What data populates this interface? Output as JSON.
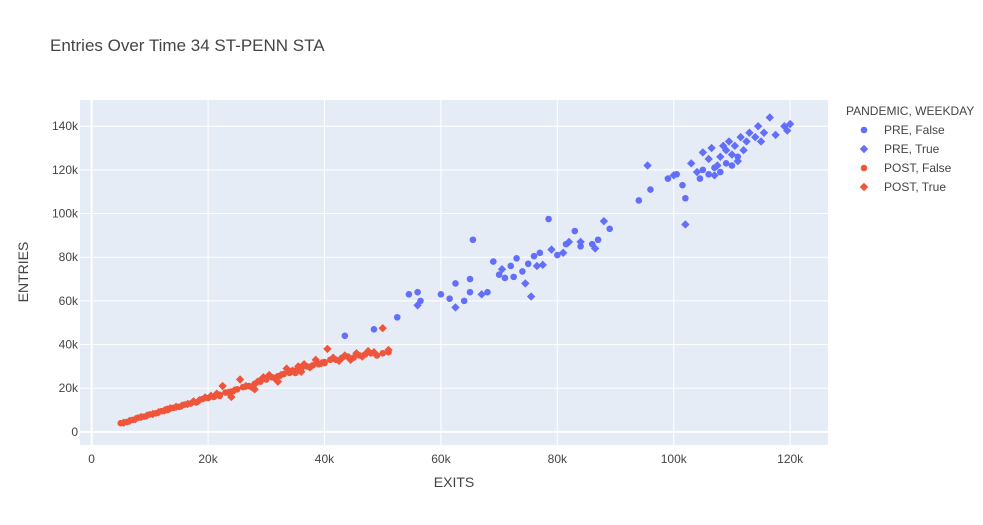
{
  "chart_data": {
    "type": "scatter",
    "title": "Entries Over Time 34 ST-PENN STA",
    "xlabel": "EXITS",
    "ylabel": "ENTRIES",
    "xlim": [
      -2000,
      126500
    ],
    "ylim": [
      -6000,
      152000
    ],
    "x_ticks": [
      0,
      20000,
      40000,
      60000,
      80000,
      100000,
      120000
    ],
    "x_tick_labels": [
      "0",
      "20k",
      "40k",
      "60k",
      "80k",
      "100k",
      "120k"
    ],
    "y_ticks": [
      0,
      20000,
      40000,
      60000,
      80000,
      100000,
      120000,
      140000
    ],
    "y_tick_labels": [
      "0",
      "20k",
      "40k",
      "60k",
      "80k",
      "100k",
      "120k",
      "140k"
    ],
    "grid": true,
    "legend_title": "PANDEMIC, WEEKDAY",
    "legend_position": "right",
    "colors": {
      "PRE": "#636efa",
      "POST": "#ef553b",
      "plot_bg": "#e5ecf6",
      "grid": "#ffffff"
    },
    "series": [
      {
        "name": "PRE, False",
        "color": "#636efa",
        "marker": "circle",
        "points": [
          [
            43500,
            44000
          ],
          [
            48500,
            47000
          ],
          [
            52500,
            52500
          ],
          [
            54500,
            63000
          ],
          [
            56000,
            64000
          ],
          [
            56500,
            60000
          ],
          [
            60000,
            63000
          ],
          [
            61500,
            61000
          ],
          [
            62500,
            68000
          ],
          [
            64000,
            60000
          ],
          [
            65000,
            64000
          ],
          [
            65000,
            70000
          ],
          [
            65500,
            88000
          ],
          [
            68000,
            64000
          ],
          [
            69000,
            78000
          ],
          [
            70000,
            72000
          ],
          [
            71000,
            70500
          ],
          [
            72000,
            76000
          ],
          [
            72500,
            71000
          ],
          [
            73000,
            79500
          ],
          [
            74000,
            73500
          ],
          [
            75000,
            77000
          ],
          [
            76000,
            80500
          ],
          [
            77000,
            82000
          ],
          [
            78500,
            97500
          ],
          [
            80000,
            81000
          ],
          [
            81500,
            86000
          ],
          [
            83000,
            92000
          ],
          [
            84000,
            85000
          ],
          [
            86000,
            86000
          ],
          [
            87000,
            88000
          ],
          [
            89000,
            93000
          ],
          [
            94000,
            106000
          ],
          [
            96000,
            111000
          ],
          [
            99000,
            116000
          ],
          [
            100500,
            118000
          ],
          [
            101500,
            113000
          ],
          [
            102000,
            107000
          ],
          [
            104500,
            116000
          ],
          [
            105000,
            120000
          ],
          [
            106000,
            118000
          ],
          [
            107000,
            121000
          ],
          [
            108000,
            119000
          ],
          [
            109000,
            123000
          ],
          [
            110000,
            122000
          ],
          [
            111000,
            126000
          ]
        ]
      },
      {
        "name": "PRE, True",
        "color": "#636efa",
        "marker": "diamond",
        "points": [
          [
            56000,
            58000
          ],
          [
            62500,
            57000
          ],
          [
            67000,
            63000
          ],
          [
            70500,
            74500
          ],
          [
            74500,
            68000
          ],
          [
            75500,
            62000
          ],
          [
            76500,
            76000
          ],
          [
            77500,
            76500
          ],
          [
            79000,
            83500
          ],
          [
            81000,
            82000
          ],
          [
            82000,
            87000
          ],
          [
            84000,
            87000
          ],
          [
            86500,
            84000
          ],
          [
            88000,
            96500
          ],
          [
            95500,
            122000
          ],
          [
            100000,
            117500
          ],
          [
            102000,
            95000
          ],
          [
            103000,
            123000
          ],
          [
            104000,
            119000
          ],
          [
            105000,
            128000
          ],
          [
            106000,
            125000
          ],
          [
            106500,
            130000
          ],
          [
            107000,
            117500
          ],
          [
            107500,
            122000
          ],
          [
            108000,
            126000
          ],
          [
            108500,
            131000
          ],
          [
            109000,
            129000
          ],
          [
            109500,
            133000
          ],
          [
            110000,
            127000
          ],
          [
            110500,
            131000
          ],
          [
            111000,
            124000
          ],
          [
            111500,
            135000
          ],
          [
            112000,
            129000
          ],
          [
            112500,
            133000
          ],
          [
            113000,
            137000
          ],
          [
            114000,
            135000
          ],
          [
            114500,
            140000
          ],
          [
            115000,
            133000
          ],
          [
            115500,
            137000
          ],
          [
            116500,
            144000
          ],
          [
            117500,
            136000
          ],
          [
            119000,
            140000
          ],
          [
            119500,
            138000
          ],
          [
            120000,
            141000
          ]
        ]
      },
      {
        "name": "POST, False",
        "color": "#ef553b",
        "marker": "circle",
        "points": [
          [
            5000,
            4000
          ],
          [
            6000,
            4500
          ],
          [
            7000,
            5500
          ],
          [
            8000,
            6500
          ],
          [
            9000,
            7000
          ],
          [
            10000,
            8000
          ],
          [
            11000,
            8500
          ],
          [
            12000,
            9500
          ],
          [
            13000,
            10000
          ],
          [
            14000,
            11000
          ],
          [
            15000,
            11500
          ],
          [
            16000,
            12500
          ],
          [
            17000,
            13000
          ],
          [
            18000,
            13500
          ],
          [
            19000,
            15000
          ],
          [
            20000,
            15500
          ],
          [
            21000,
            16000
          ],
          [
            22000,
            17000
          ],
          [
            23000,
            18000
          ],
          [
            24000,
            18500
          ],
          [
            25000,
            19500
          ],
          [
            26000,
            20500
          ],
          [
            27000,
            21000
          ],
          [
            28000,
            22000
          ],
          [
            29000,
            23000
          ],
          [
            30000,
            24000
          ],
          [
            31000,
            25000
          ],
          [
            32000,
            25500
          ],
          [
            33000,
            26500
          ],
          [
            34000,
            27000
          ],
          [
            35000,
            28000
          ],
          [
            36000,
            29000
          ],
          [
            37000,
            30000
          ],
          [
            38000,
            30500
          ],
          [
            39000,
            31000
          ],
          [
            40000,
            32000
          ],
          [
            41000,
            33000
          ],
          [
            42000,
            33000
          ],
          [
            43000,
            34000
          ],
          [
            44000,
            34500
          ],
          [
            45000,
            34000
          ],
          [
            46000,
            35000
          ],
          [
            47000,
            35500
          ],
          [
            48000,
            36000
          ],
          [
            49000,
            35000
          ],
          [
            50000,
            36000
          ],
          [
            51000,
            36500
          ],
          [
            13000,
            10500
          ],
          [
            22000,
            16500
          ],
          [
            29000,
            23500
          ],
          [
            35000,
            27000
          ],
          [
            40000,
            31500
          ]
        ]
      },
      {
        "name": "POST, True",
        "color": "#ef553b",
        "marker": "diamond",
        "points": [
          [
            5500,
            4200
          ],
          [
            6500,
            5000
          ],
          [
            7500,
            5800
          ],
          [
            8500,
            6800
          ],
          [
            9500,
            7500
          ],
          [
            10500,
            8200
          ],
          [
            11500,
            9000
          ],
          [
            12500,
            9800
          ],
          [
            13500,
            10800
          ],
          [
            14500,
            11500
          ],
          [
            15500,
            12000
          ],
          [
            16500,
            12800
          ],
          [
            17500,
            14000
          ],
          [
            18500,
            14500
          ],
          [
            19500,
            15800
          ],
          [
            20500,
            16500
          ],
          [
            21500,
            17500
          ],
          [
            22500,
            21000
          ],
          [
            23500,
            18000
          ],
          [
            24500,
            19000
          ],
          [
            25500,
            24000
          ],
          [
            26500,
            21000
          ],
          [
            27500,
            20500
          ],
          [
            28500,
            23000
          ],
          [
            29500,
            25000
          ],
          [
            30500,
            26000
          ],
          [
            31500,
            24500
          ],
          [
            32500,
            26000
          ],
          [
            33500,
            29000
          ],
          [
            34500,
            28000
          ],
          [
            35500,
            30000
          ],
          [
            36500,
            31000
          ],
          [
            37500,
            29500
          ],
          [
            38500,
            33000
          ],
          [
            39500,
            31500
          ],
          [
            40500,
            38000
          ],
          [
            41500,
            34000
          ],
          [
            42500,
            32500
          ],
          [
            43500,
            35000
          ],
          [
            44500,
            33000
          ],
          [
            45500,
            36000
          ],
          [
            46500,
            34500
          ],
          [
            47500,
            37000
          ],
          [
            48500,
            36500
          ],
          [
            50000,
            47500
          ],
          [
            51000,
            37500
          ],
          [
            24000,
            16000
          ],
          [
            28000,
            19500
          ],
          [
            32000,
            23000
          ],
          [
            36000,
            27500
          ]
        ]
      }
    ]
  }
}
